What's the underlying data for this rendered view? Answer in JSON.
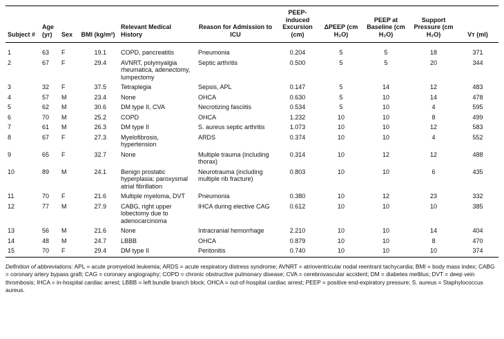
{
  "table": {
    "headers": [
      "Subject #",
      "Age (yr)",
      "Sex",
      "BMI (kg/m²)",
      "Relevant Medical History",
      "Reason for Admission to ICU",
      "PEEP-induced Excursion (cm)",
      "ΔPEEP (cm H₂O)",
      "PEEP at Baseline (cm H₂O)",
      "Support Pressure (cm H₂O)",
      "Vт (ml)"
    ],
    "rows": [
      [
        "1",
        "63",
        "F",
        "19.1",
        "COPD, pancreatitis",
        "Pneumonia",
        "0.204",
        "5",
        "5",
        "18",
        "371"
      ],
      [
        "2",
        "67",
        "F",
        "29.4",
        "AVNRT, polymyalgia rheumatica, adenectomy, lumpectomy",
        "Septic arthritis",
        "0.500",
        "5",
        "5",
        "20",
        "344"
      ],
      [
        "3",
        "32",
        "F",
        "37.5",
        "Tetraplegia",
        "Sepsis, APL",
        "0.147",
        "5",
        "14",
        "12",
        "483"
      ],
      [
        "4",
        "57",
        "M",
        "23.4",
        "None",
        "OHCA",
        "0.630",
        "5",
        "10",
        "14",
        "478"
      ],
      [
        "5",
        "62",
        "M",
        "30.6",
        "DM type II, CVA",
        "Necrotizing fasciitis",
        "0.534",
        "5",
        "10",
        "4",
        "595"
      ],
      [
        "6",
        "70",
        "M",
        "25.2",
        "COPD",
        "OHCA",
        "1.232",
        "10",
        "10",
        "8",
        "499"
      ],
      [
        "7",
        "61",
        "M",
        "26.3",
        "DM type II",
        "S. aureus septic arthritis",
        "1.073",
        "10",
        "10",
        "12",
        "583"
      ],
      [
        "8",
        "67",
        "F",
        "27.3",
        "Myelofibrosis, hypertension",
        "ARDS",
        "0.374",
        "10",
        "10",
        "4",
        "552"
      ],
      [
        "9",
        "65",
        "F",
        "32.7",
        "None",
        "Multiple trauma (including thorax)",
        "0.314",
        "10",
        "12",
        "12",
        "488"
      ],
      [
        "10",
        "89",
        "M",
        "24.1",
        "Benign prostatic hyperplasia; paroxysmal atrial fibrillation",
        "Neurotrauma (including multiple rib fracture)",
        "0.803",
        "10",
        "10",
        "6",
        "435"
      ],
      [
        "11",
        "70",
        "F",
        "21.6",
        "Multiple myeloma, DVT",
        "Pneumonia",
        "0.380",
        "10",
        "12",
        "23",
        "332"
      ],
      [
        "12",
        "77",
        "M",
        "27.9",
        "CABG, right upper lobectomy due to adenocarcinoma",
        "IHCA during elective CAG",
        "0.612",
        "10",
        "10",
        "10",
        "385"
      ],
      [
        "13",
        "56",
        "M",
        "21.6",
        "None",
        "Intracranial hemorrhage",
        "2.210",
        "10",
        "10",
        "14",
        "404"
      ],
      [
        "14",
        "48",
        "M",
        "24.7",
        "LBBB",
        "OHCA",
        "0.879",
        "10",
        "10",
        "8",
        "470"
      ],
      [
        "15",
        "70",
        "F",
        "29.4",
        "DM type II",
        "Peritonitis",
        "0.740",
        "10",
        "10",
        "10",
        "374"
      ]
    ]
  },
  "footnote": {
    "label": "Definition of abbreviations:",
    "text": "APL = acute promyeloid leukemia; ARDS = acute respiratory distress syndrome; AVNRT = atrioventricular nodal reentrant tachycardia; BMI = body mass index; CABG = coronary artery bypass graft; CAG = coronary angiography; COPD = chronic obstructive pulmonary disease; CVA = cerebrovascular accident; DM = diabetes mellitus; DVT = deep vein thrombosis; IHCA = in-hospital cardiac arrest; LBBB = left bundle branch block; OHCA = out-of-hospital cardiac arrest; PEEP = positive end-expiratory pressure; S. aureus = Staphylococcus aureus."
  }
}
